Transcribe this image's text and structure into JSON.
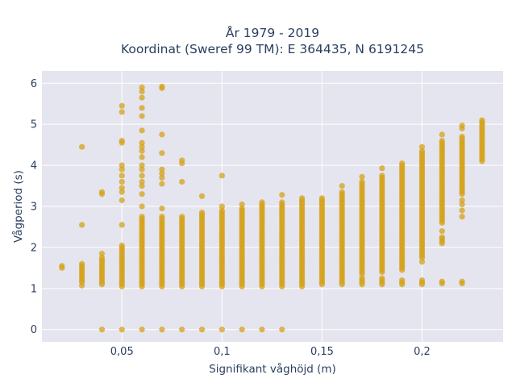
{
  "chart_data": {
    "type": "scatter",
    "title_line1": "År 1979 - 2019",
    "title_line2": "Koordinat (Sweref 99 TM): E 364435, N 6191245",
    "xlabel": "Signifikant våghöjd (m)",
    "ylabel": "Vågperiod (s)",
    "xlim": [
      0.01,
      0.2405
    ],
    "ylim": [
      -0.3,
      6.3
    ],
    "x_ticks": [
      0.05,
      0.1,
      0.15,
      0.2
    ],
    "x_tick_labels": [
      "0,05",
      "0,1",
      "0,15",
      "0,2"
    ],
    "y_ticks": [
      0,
      1,
      2,
      3,
      4,
      5,
      6
    ],
    "y_tick_labels": [
      "0",
      "1",
      "2",
      "3",
      "4",
      "5",
      "6"
    ],
    "grid": true,
    "colors": {
      "marker": "#d4a21a",
      "plot_bg": "#e5e5ef",
      "grid": "#ffffff",
      "text": "#2a3f5f"
    },
    "columns": [
      {
        "x": 0.02,
        "ranges": [
          [
            1.5,
            1.55
          ]
        ],
        "points": []
      },
      {
        "x": 0.03,
        "ranges": [
          [
            1.15,
            1.6
          ]
        ],
        "points": [
          1.07,
          2.55,
          4.45
        ]
      },
      {
        "x": 0.04,
        "ranges": [
          [
            1.1,
            1.75
          ]
        ],
        "points": [
          0,
          1.85,
          3.3,
          3.35
        ]
      },
      {
        "x": 0.05,
        "ranges": [
          [
            1.05,
            2.05
          ]
        ],
        "points": [
          0,
          2.55,
          3.15,
          3.35,
          3.45,
          3.6,
          3.75,
          3.9,
          4.0,
          4.55,
          4.6,
          5.3,
          5.45
        ]
      },
      {
        "x": 0.06,
        "ranges": [
          [
            1.05,
            2.75
          ]
        ],
        "points": [
          0,
          3.0,
          3.3,
          3.5,
          3.6,
          3.75,
          3.9,
          4.0,
          4.2,
          4.35,
          4.45,
          4.55,
          4.85,
          5.2,
          5.4,
          5.65,
          5.8,
          5.9
        ]
      },
      {
        "x": 0.07,
        "ranges": [
          [
            1.05,
            2.75
          ]
        ],
        "points": [
          0,
          2.95,
          3.55,
          3.7,
          3.8,
          3.9,
          4.3,
          4.75,
          5.88,
          5.92
        ]
      },
      {
        "x": 0.08,
        "ranges": [
          [
            1.05,
            2.75
          ]
        ],
        "points": [
          0,
          3.6,
          4.05,
          4.12
        ]
      },
      {
        "x": 0.09,
        "ranges": [
          [
            1.05,
            2.85
          ]
        ],
        "points": [
          0,
          3.25
        ]
      },
      {
        "x": 0.1,
        "ranges": [
          [
            1.05,
            2.9
          ]
        ],
        "points": [
          0,
          3.0,
          3.75
        ]
      },
      {
        "x": 0.11,
        "ranges": [
          [
            1.05,
            2.95
          ]
        ],
        "points": [
          0,
          3.05
        ]
      },
      {
        "x": 0.12,
        "ranges": [
          [
            1.05,
            3.05
          ]
        ],
        "points": [
          0,
          3.1
        ]
      },
      {
        "x": 0.13,
        "ranges": [
          [
            1.05,
            3.1
          ]
        ],
        "points": [
          0,
          3.28
        ]
      },
      {
        "x": 0.14,
        "ranges": [
          [
            1.05,
            3.2
          ]
        ],
        "points": []
      },
      {
        "x": 0.15,
        "ranges": [
          [
            1.1,
            3.2
          ]
        ],
        "points": []
      },
      {
        "x": 0.16,
        "ranges": [
          [
            1.1,
            3.35
          ]
        ],
        "points": [
          3.5
        ]
      },
      {
        "x": 0.17,
        "ranges": [
          [
            1.1,
            1.25
          ],
          [
            1.35,
            3.6
          ]
        ],
        "points": [
          3.72
        ]
      },
      {
        "x": 0.18,
        "ranges": [
          [
            1.1,
            1.25
          ],
          [
            1.4,
            3.75
          ]
        ],
        "points": [
          3.93
        ]
      },
      {
        "x": 0.19,
        "ranges": [
          [
            1.1,
            1.2
          ],
          [
            1.45,
            4.0
          ]
        ],
        "points": [
          4.05
        ]
      },
      {
        "x": 0.2,
        "ranges": [
          [
            1.1,
            1.2
          ],
          [
            1.75,
            4.35
          ]
        ],
        "points": [
          1.65,
          4.45
        ]
      },
      {
        "x": 0.21,
        "ranges": [
          [
            1.12,
            1.2
          ],
          [
            2.1,
            2.25
          ],
          [
            2.6,
            4.6
          ]
        ],
        "points": [
          2.4,
          4.75
        ]
      },
      {
        "x": 0.22,
        "ranges": [
          [
            1.12,
            1.2
          ],
          [
            3.3,
            4.7
          ]
        ],
        "points": [
          2.75,
          2.9,
          3.05,
          3.15,
          4.9,
          4.97
        ]
      },
      {
        "x": 0.23,
        "ranges": [
          [
            4.15,
            5.05
          ]
        ],
        "points": [
          4.1,
          5.1
        ]
      }
    ]
  }
}
